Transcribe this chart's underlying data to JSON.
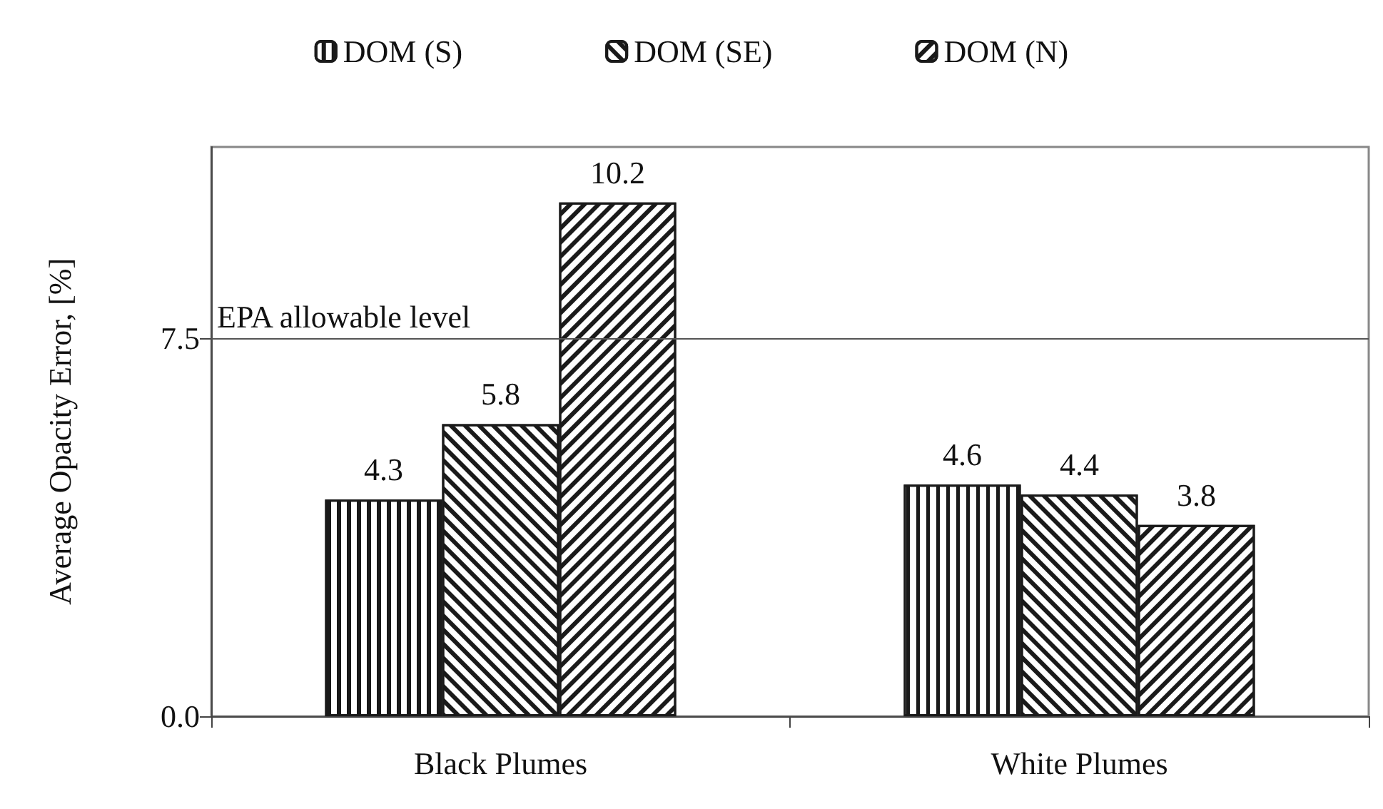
{
  "chart_data": {
    "type": "bar",
    "ylabel": "Average Opacity Error, [%]",
    "categories": [
      "Black Plumes",
      "White Plumes"
    ],
    "series": [
      {
        "name": "DOM (S)",
        "color": "#1a1a1a",
        "values": [
          4.3,
          4.6
        ]
      },
      {
        "name": "DOM (SE)",
        "color": "#1a1a1a",
        "values": [
          5.8,
          4.4
        ]
      },
      {
        "name": "DOM (N)",
        "color": "#1a1a1a",
        "values": [
          10.2,
          3.8
        ]
      }
    ],
    "ylim": [
      0,
      11.3
    ],
    "yticks": [
      {
        "value": 0,
        "label": "0.0"
      },
      {
        "value": 7.5,
        "label": "7.5"
      }
    ],
    "ref_lines": [
      {
        "axis": "y",
        "value": 7.5,
        "label": "EPA allowable level",
        "color": "#555555"
      }
    ],
    "data_labels": true,
    "legend": "top"
  }
}
